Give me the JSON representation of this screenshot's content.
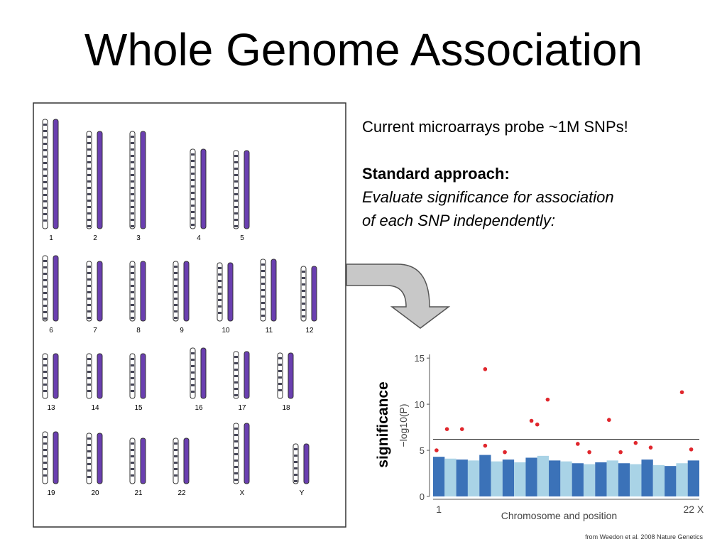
{
  "title": "Whole Genome Association",
  "text": {
    "line1": "Current microarrays probe ~1M SNPs!",
    "heading": "Standard approach:",
    "body1": "Evaluate significance for association",
    "body2": "of each SNP independently:"
  },
  "karyotype": {
    "labels": [
      "1",
      "2",
      "3",
      "4",
      "5",
      "6",
      "7",
      "8",
      "9",
      "10",
      "11",
      "12",
      "13",
      "14",
      "15",
      "16",
      "17",
      "18",
      "19",
      "20",
      "21",
      "22",
      "X",
      "Y"
    ]
  },
  "side_label": "significance",
  "citation": "from Weedon et al. 2008 Nature Genetics",
  "chart_data": {
    "type": "scatter",
    "y_label": "−log10(P)",
    "x_label": "Chromosome and position",
    "xlim": [
      0,
      23
    ],
    "xticks": [
      {
        "value": 0.5,
        "label": "1"
      },
      {
        "value": 22.5,
        "label": "22 X"
      }
    ],
    "ylim": [
      0,
      15.4
    ],
    "yticks": [
      0,
      5,
      10,
      15
    ],
    "threshold": 6.2,
    "series": [
      {
        "type": "bar",
        "color": "#3b72b8",
        "alt_color": "#a9d3e6",
        "x": [
          0.5,
          1.5,
          2.5,
          3.5,
          4.5,
          5.5,
          6.5,
          7.5,
          8.5,
          9.5,
          10.5,
          11.5,
          12.5,
          13.5,
          14.5,
          15.5,
          16.5,
          17.5,
          18.5,
          19.5,
          20.5,
          21.5,
          22.5
        ],
        "values": [
          4.3,
          4.1,
          4.0,
          3.9,
          4.5,
          3.8,
          4.0,
          3.7,
          4.2,
          4.4,
          3.9,
          3.8,
          3.6,
          3.5,
          3.7,
          3.9,
          3.6,
          3.5,
          4.0,
          3.4,
          3.3,
          3.6,
          3.9
        ]
      },
      {
        "type": "points",
        "color": "#e0262c",
        "x": [
          0.3,
          1.2,
          2.5,
          4.5,
          4.5,
          6.2,
          8.5,
          9.0,
          9.9,
          12.5,
          13.5,
          15.2,
          16.2,
          17.5,
          18.8,
          21.5,
          22.3
        ],
        "values": [
          5.0,
          7.3,
          7.3,
          13.8,
          5.5,
          4.8,
          8.2,
          7.8,
          10.5,
          5.7,
          4.8,
          8.3,
          4.8,
          5.8,
          5.3,
          11.3,
          5.1
        ]
      }
    ]
  }
}
